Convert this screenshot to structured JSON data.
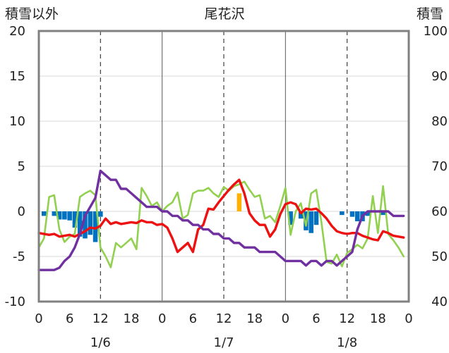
{
  "chart_data": {
    "type": "line",
    "title": "尾花沢",
    "left_axis_title": "積雪以外",
    "right_axis_title": "積雪",
    "left_ylim": [
      -10,
      20
    ],
    "left_yticks": [
      "20",
      "15",
      "10",
      "5",
      "0",
      "-5",
      "-10"
    ],
    "right_ylim": [
      40,
      100
    ],
    "right_yticks": [
      "100",
      "90",
      "80",
      "70",
      "60",
      "50",
      "40"
    ],
    "x_hours_range": [
      0,
      72
    ],
    "x_tick_labels": [
      "0",
      "6",
      "12",
      "18",
      "0",
      "6",
      "12",
      "18",
      "0",
      "6",
      "12",
      "18",
      "0"
    ],
    "date_labels": [
      "1/6",
      "1/7",
      "1/8"
    ],
    "grid": "vertical-dashed",
    "colors": {
      "temperature": "#ee1111",
      "humidity_like": "#92d050",
      "snow_depth": "#7030a0",
      "precip_bar": "#0070c0",
      "precip_bar_alt": "#ffb000",
      "frame": "#808080"
    },
    "series": [
      {
        "key": "red",
        "values": [
          [
            0,
            -2.4
          ],
          [
            2,
            -2.6
          ],
          [
            3,
            -2.5
          ],
          [
            4,
            -2.8
          ],
          [
            6,
            -2.6
          ],
          [
            7,
            -2.8
          ],
          [
            9,
            -2.2
          ],
          [
            10,
            -1.8
          ],
          [
            11,
            -1.9
          ],
          [
            12,
            -1.6
          ],
          [
            13,
            -0.8
          ],
          [
            14,
            -1.4
          ],
          [
            15,
            -1.2
          ],
          [
            16,
            -1.4
          ],
          [
            18,
            -1.2
          ],
          [
            19,
            -1.3
          ],
          [
            20,
            -1.0
          ],
          [
            21,
            -1.2
          ],
          [
            22,
            -1.2
          ],
          [
            23,
            -1.5
          ],
          [
            24,
            -1.4
          ],
          [
            25,
            -1.8
          ],
          [
            26,
            -3.0
          ],
          [
            27,
            -4.5
          ],
          [
            28,
            -4.0
          ],
          [
            29,
            -3.5
          ],
          [
            30,
            -4.5
          ],
          [
            31,
            -2.0
          ],
          [
            32,
            -1.5
          ],
          [
            33,
            0.3
          ],
          [
            34,
            0.2
          ],
          [
            35,
            1.0
          ],
          [
            36,
            1.7
          ],
          [
            37,
            2.4
          ],
          [
            38,
            3.0
          ],
          [
            39,
            3.5
          ],
          [
            40,
            2.0
          ],
          [
            41,
            -0.2
          ],
          [
            42,
            -1.0
          ],
          [
            43,
            -1.5
          ],
          [
            44,
            -1.5
          ],
          [
            45,
            -2.8
          ],
          [
            46,
            -2.0
          ],
          [
            47,
            -0.3
          ],
          [
            48,
            0.8
          ],
          [
            49,
            1.0
          ],
          [
            50,
            0.8
          ],
          [
            51,
            -0.2
          ],
          [
            52,
            0.3
          ],
          [
            53,
            0.2
          ],
          [
            54,
            0.3
          ],
          [
            55,
            -0.2
          ],
          [
            56,
            -0.8
          ],
          [
            57,
            -1.6
          ],
          [
            58,
            -2.2
          ],
          [
            59,
            -2.4
          ],
          [
            60,
            -2.5
          ],
          [
            61,
            -2.4
          ],
          [
            62,
            -2.4
          ],
          [
            63,
            -2.7
          ],
          [
            64,
            -2.9
          ],
          [
            65,
            -3.1
          ],
          [
            66,
            -3.2
          ],
          [
            67,
            -2.2
          ],
          [
            68,
            -2.4
          ],
          [
            69,
            -2.7
          ],
          [
            70,
            -2.8
          ],
          [
            71,
            -2.9
          ]
        ]
      },
      {
        "key": "green",
        "values": [
          [
            0,
            -4.0
          ],
          [
            1,
            -3.0
          ],
          [
            2,
            1.6
          ],
          [
            3,
            1.8
          ],
          [
            4,
            -2.0
          ],
          [
            5,
            -3.4
          ],
          [
            6,
            -2.8
          ],
          [
            7,
            -2.5
          ],
          [
            8,
            1.6
          ],
          [
            9,
            2.0
          ],
          [
            10,
            2.3
          ],
          [
            11,
            1.8
          ],
          [
            12,
            -4.0
          ],
          [
            13,
            -5.0
          ],
          [
            14,
            -6.2
          ],
          [
            15,
            -3.5
          ],
          [
            16,
            -4.0
          ],
          [
            17,
            -3.5
          ],
          [
            18,
            -3.0
          ],
          [
            19,
            -4.2
          ],
          [
            20,
            2.6
          ],
          [
            21,
            1.7
          ],
          [
            22,
            0.6
          ],
          [
            23,
            1.0
          ],
          [
            24,
            0.0
          ],
          [
            25,
            0.6
          ],
          [
            26,
            1.0
          ],
          [
            27,
            2.1
          ],
          [
            28,
            -0.8
          ],
          [
            29,
            -0.4
          ],
          [
            30,
            2.0
          ],
          [
            31,
            2.3
          ],
          [
            32,
            2.3
          ],
          [
            33,
            2.6
          ],
          [
            34,
            2.0
          ],
          [
            35,
            1.6
          ],
          [
            36,
            2.7
          ],
          [
            37,
            2.3
          ],
          [
            38,
            2.8
          ],
          [
            39,
            3.0
          ],
          [
            40,
            3.3
          ],
          [
            41,
            2.4
          ],
          [
            42,
            1.6
          ],
          [
            43,
            1.8
          ],
          [
            44,
            -0.8
          ],
          [
            45,
            -0.5
          ],
          [
            46,
            -1.2
          ],
          [
            47,
            0.6
          ],
          [
            48,
            2.6
          ],
          [
            49,
            -2.6
          ],
          [
            50,
            0.0
          ],
          [
            51,
            0.9
          ],
          [
            52,
            -1.6
          ],
          [
            53,
            2.0
          ],
          [
            54,
            2.4
          ],
          [
            55,
            -1.2
          ],
          [
            56,
            -5.6
          ],
          [
            57,
            -5.8
          ],
          [
            58,
            -4.8
          ],
          [
            59,
            -6.1
          ],
          [
            60,
            -4.6
          ],
          [
            61,
            -4.2
          ],
          [
            62,
            -3.7
          ],
          [
            63,
            -4.1
          ],
          [
            64,
            -3.0
          ],
          [
            65,
            1.7
          ],
          [
            66,
            -2.4
          ],
          [
            67,
            2.8
          ],
          [
            68,
            -2.5
          ],
          [
            69,
            -3.2
          ],
          [
            70,
            -4.0
          ],
          [
            71,
            -5.0
          ]
        ]
      },
      {
        "key": "purple",
        "values": [
          [
            0,
            47
          ],
          [
            3,
            47
          ],
          [
            4,
            47.5
          ],
          [
            5,
            49
          ],
          [
            6,
            50
          ],
          [
            7,
            52
          ],
          [
            8,
            55
          ],
          [
            9,
            59
          ],
          [
            10,
            61
          ],
          [
            11,
            63
          ],
          [
            12,
            69
          ],
          [
            13,
            68
          ],
          [
            14,
            67
          ],
          [
            15,
            67
          ],
          [
            16,
            65
          ],
          [
            17,
            65
          ],
          [
            18,
            64
          ],
          [
            19,
            63
          ],
          [
            20,
            62
          ],
          [
            21,
            61
          ],
          [
            22,
            61
          ],
          [
            23,
            61
          ],
          [
            24,
            60
          ],
          [
            25,
            60
          ],
          [
            26,
            59
          ],
          [
            27,
            59
          ],
          [
            28,
            58
          ],
          [
            29,
            58
          ],
          [
            30,
            57
          ],
          [
            31,
            57
          ],
          [
            32,
            56
          ],
          [
            33,
            56
          ],
          [
            34,
            55
          ],
          [
            35,
            55
          ],
          [
            36,
            54
          ],
          [
            37,
            54
          ],
          [
            38,
            53
          ],
          [
            39,
            53
          ],
          [
            40,
            52
          ],
          [
            41,
            52
          ],
          [
            42,
            52
          ],
          [
            43,
            51
          ],
          [
            44,
            51
          ],
          [
            45,
            51
          ],
          [
            46,
            51
          ],
          [
            47,
            50
          ],
          [
            48,
            49
          ],
          [
            49,
            49
          ],
          [
            50,
            49
          ],
          [
            51,
            49
          ],
          [
            52,
            48
          ],
          [
            53,
            49
          ],
          [
            54,
            49
          ],
          [
            55,
            48
          ],
          [
            56,
            49
          ],
          [
            57,
            49
          ],
          [
            58,
            48
          ],
          [
            59,
            49
          ],
          [
            60,
            50
          ],
          [
            61,
            51
          ],
          [
            62,
            56
          ],
          [
            63,
            59
          ],
          [
            64,
            60
          ],
          [
            65,
            60
          ],
          [
            66,
            60
          ],
          [
            67,
            60
          ],
          [
            68,
            60
          ],
          [
            69,
            59
          ],
          [
            70,
            59
          ],
          [
            71,
            59
          ]
        ]
      }
    ],
    "bars": [
      {
        "x": 1,
        "value": -0.5
      },
      {
        "x": 3,
        "value": -0.5
      },
      {
        "x": 4,
        "value": -0.9
      },
      {
        "x": 5,
        "value": -0.9
      },
      {
        "x": 6,
        "value": -1.0
      },
      {
        "x": 7,
        "value": -1.8
      },
      {
        "x": 8,
        "value": -2.8
      },
      {
        "x": 9,
        "value": -3.0
      },
      {
        "x": 10,
        "value": -2.6
      },
      {
        "x": 11,
        "value": -3.4
      },
      {
        "x": 12,
        "value": -0.6
      },
      {
        "x": 39,
        "value": 2.0,
        "alt": true
      },
      {
        "x": 49,
        "value": -1.5
      },
      {
        "x": 51,
        "value": -0.8
      },
      {
        "x": 52,
        "value": -2.1
      },
      {
        "x": 53,
        "value": -2.4
      },
      {
        "x": 54,
        "value": -1.5
      },
      {
        "x": 59,
        "value": -0.4
      },
      {
        "x": 61,
        "value": -0.6
      },
      {
        "x": 62,
        "value": -1.1
      },
      {
        "x": 63,
        "value": -1.1
      },
      {
        "x": 64,
        "value": -0.5
      },
      {
        "x": 67,
        "value": -0.4
      }
    ]
  }
}
